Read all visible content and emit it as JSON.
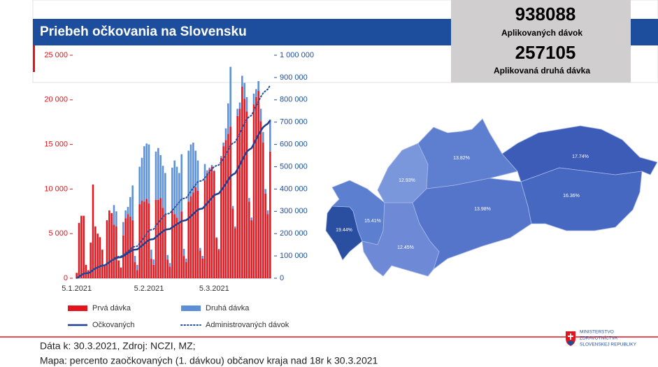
{
  "chart_data": {
    "type": "bar",
    "title": "Priebeh očkovania na Slovensku",
    "stacked": true,
    "categories": [
      "5.1.2021",
      null,
      null,
      null,
      null,
      null,
      null,
      null,
      null,
      null,
      null,
      null,
      null,
      null,
      null,
      null,
      null,
      null,
      null,
      null,
      null,
      null,
      null,
      null,
      null,
      null,
      null,
      null,
      null,
      null,
      null,
      "5.2.2021",
      null,
      null,
      null,
      null,
      null,
      null,
      null,
      null,
      null,
      null,
      null,
      null,
      null,
      null,
      null,
      null,
      null,
      null,
      null,
      null,
      null,
      null,
      null,
      null,
      null,
      null,
      null,
      "5.3.2021",
      null,
      null,
      null,
      null,
      null,
      null,
      null,
      null,
      null,
      null,
      null,
      null,
      null,
      null,
      null,
      null,
      null,
      null,
      null,
      null,
      null,
      null,
      null,
      null
    ],
    "series": [
      {
        "name": "Prvá dávka",
        "kind": "bar",
        "color": "#e3141b",
        "values": [
          600,
          6200,
          7000,
          7000,
          1500,
          900,
          4000,
          10500,
          5800,
          5000,
          4600,
          3200,
          1500,
          6500,
          7600,
          7300,
          6000,
          5800,
          2000,
          1200,
          4800,
          6700,
          7200,
          6900,
          6500,
          1800,
          900,
          8300,
          8700,
          8600,
          8900,
          8400,
          2200,
          1500,
          8800,
          8800,
          9000,
          7900,
          7200,
          2100,
          1300,
          7600,
          7200,
          6800,
          6100,
          7500,
          2500,
          1800,
          8600,
          9200,
          9600,
          10200,
          9800,
          3100,
          2200,
          11000,
          11800,
          12200,
          12500,
          12000,
          4500,
          3200,
          13500,
          14800,
          15500,
          16200,
          17000,
          7800,
          5600,
          18200,
          19000,
          21500,
          20100,
          18700,
          8600,
          6500,
          19500,
          20300,
          21000,
          17600,
          15200,
          9500,
          7200,
          14200
        ]
      },
      {
        "name": "Druhá dávka",
        "kind": "bar",
        "color": "#5b8fd8",
        "values": [
          0,
          0,
          0,
          0,
          0,
          0,
          0,
          0,
          0,
          0,
          0,
          0,
          0,
          0,
          0,
          0,
          2200,
          1700,
          0,
          0,
          1500,
          900,
          800,
          2200,
          3900,
          700,
          600,
          4200,
          4800,
          6200,
          6200,
          6600,
          1000,
          600,
          5400,
          5800,
          4800,
          4700,
          4600,
          500,
          400,
          4800,
          6000,
          5700,
          5700,
          6400,
          800,
          400,
          5700,
          5800,
          5600,
          4100,
          3400,
          300,
          300,
          1800,
          300,
          200,
          200,
          100,
          100,
          100,
          200,
          400,
          1300,
          3400,
          6700,
          300,
          200,
          800,
          700,
          1200,
          1800,
          1600,
          400,
          300,
          1200,
          900,
          1100,
          1400,
          1200,
          500,
          400,
          3600
        ]
      },
      {
        "name": "Očkovaných",
        "kind": "line",
        "axis": "y2",
        "color": "#1f3f8f",
        "values": [
          600,
          6800,
          13800,
          20800,
          22300,
          23200,
          27200,
          37700,
          43500,
          48500,
          53100,
          56300,
          57800,
          64300,
          71900,
          79200,
          85200,
          91000,
          93000,
          94200,
          99000,
          105700,
          112900,
          119800,
          126300,
          128100,
          129000,
          137300,
          146000,
          154600,
          163500,
          171900,
          174100,
          175600,
          184400,
          193200,
          202200,
          210100,
          217300,
          219400,
          220700,
          228300,
          235500,
          242300,
          248400,
          255900,
          258400,
          260200,
          268800,
          278000,
          287600,
          297800,
          307600,
          310700,
          312900,
          323900,
          335700,
          347900,
          360400,
          372400,
          376900,
          380100,
          393600,
          408400,
          423900,
          440100,
          457100,
          464900,
          470500,
          488700,
          507700,
          529200,
          549300,
          568000,
          576600,
          583100,
          602600,
          622900,
          643900,
          661500,
          676700,
          686200,
          693400,
          707600
        ]
      },
      {
        "name": "Administrovaných dávok",
        "kind": "line",
        "dotted": true,
        "axis": "y2",
        "color": "#1f4fa0",
        "values": [
          600,
          6800,
          13800,
          20800,
          22300,
          23200,
          27200,
          37700,
          43500,
          48500,
          53100,
          56300,
          57800,
          64300,
          71900,
          79200,
          87400,
          94900,
          96900,
          98100,
          104400,
          112000,
          120000,
          129100,
          139500,
          142000,
          143500,
          156000,
          169500,
          184300,
          199400,
          214400,
          217600,
          219700,
          233900,
          248500,
          262300,
          274900,
          286700,
          289300,
          291000,
          303400,
          316600,
          329100,
          340900,
          354800,
          358100,
          360300,
          374600,
          389600,
          404800,
          419100,
          432300,
          435700,
          438200,
          451000,
          463100,
          475500,
          488200,
          500300,
          504900,
          508200,
          521900,
          537100,
          553900,
          573500,
          597200,
          605300,
          611100,
          630100,
          649800,
          672500,
          694400,
          714700,
          723700,
          730500,
          751200,
          772400,
          794500,
          813500,
          829900,
          839900,
          847500,
          865300
        ]
      }
    ],
    "ylim": [
      0,
      25000
    ],
    "yticks": [
      0,
      {
        "value": 5000,
        "label": "5 000"
      },
      {
        "value": 10000,
        "label": "10 000"
      },
      {
        "value": 15000,
        "label": "15 000"
      },
      {
        "value": 20000,
        "label": "20 000"
      },
      {
        "value": 25000,
        "label": "25 000"
      }
    ],
    "y2lim": [
      0,
      1000000
    ],
    "y2ticks": [
      0,
      {
        "value": 100000,
        "label": "100 000"
      },
      {
        "value": 200000,
        "label": "200 000"
      },
      {
        "value": 300000,
        "label": "300 000"
      },
      {
        "value": 400000,
        "label": "400 000"
      },
      {
        "value": 500000,
        "label": "500 000"
      },
      {
        "value": 600000,
        "label": "600 000"
      },
      {
        "value": 700000,
        "label": "700 000"
      },
      {
        "value": 800000,
        "label": "800 000"
      },
      {
        "value": 900000,
        "label": "900 000"
      },
      {
        "value": 1000000,
        "label": "1 000 000"
      }
    ],
    "legend": "bottom"
  },
  "stats": [
    {
      "value": 938088,
      "label": "Aplikovaných dávok"
    },
    {
      "value": 257105,
      "label": "Aplikovaná druhá dávka"
    }
  ],
  "map": {
    "labels": [
      "19.44%",
      "15.41%",
      "12.93%",
      "12.45%",
      "13.82%",
      "13.98%",
      "17.74%",
      "16.36%"
    ]
  },
  "footer": [
    "Dáta k: 30.3.2021, Zdroj: NCZI, MZ;",
    "Mapa: percento zaočkovaných (1. dávkou) občanov kraja nad 18r k 30.3.2021"
  ],
  "logo": [
    "MINISTERSTVO",
    "ZDRAVOTNÍCTVA",
    "SLOVENSKEJ REPUBLIKY"
  ]
}
